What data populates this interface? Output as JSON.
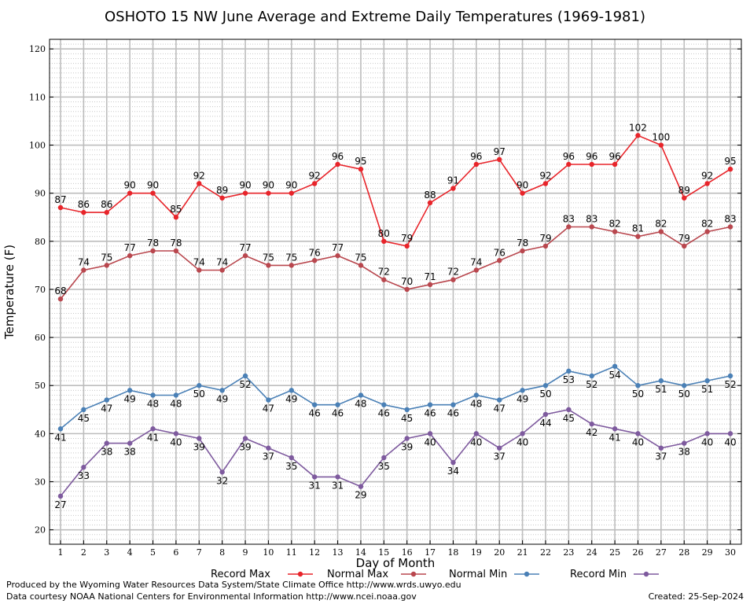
{
  "chart_data": {
    "type": "line",
    "title": "OSHOTO 15 NW June Average and Extreme Daily Temperatures (1969-1981)",
    "xlabel": "Day of Month",
    "ylabel": "Temperature (F)",
    "ylim": [
      17,
      122
    ],
    "yticks": [
      20,
      30,
      40,
      50,
      60,
      70,
      80,
      90,
      100,
      110,
      120
    ],
    "x": [
      1,
      2,
      3,
      4,
      5,
      6,
      7,
      8,
      9,
      10,
      11,
      12,
      13,
      14,
      15,
      16,
      17,
      18,
      19,
      20,
      21,
      22,
      23,
      24,
      25,
      26,
      27,
      28,
      29,
      30
    ],
    "grid": true,
    "legend_position": "bottom",
    "series": [
      {
        "name": "Record Max",
        "color": "#e8242a",
        "label_position": "above",
        "values": [
          87,
          86,
          86,
          90,
          90,
          85,
          92,
          89,
          90,
          90,
          90,
          92,
          96,
          95,
          80,
          79,
          88,
          91,
          96,
          97,
          90,
          92,
          96,
          96,
          96,
          102,
          100,
          89,
          92,
          95
        ]
      },
      {
        "name": "Normal Max",
        "color": "#b9474e",
        "label_position": "above",
        "values": [
          68,
          74,
          75,
          77,
          78,
          78,
          74,
          74,
          77,
          75,
          75,
          76,
          77,
          75,
          72,
          70,
          71,
          72,
          74,
          76,
          78,
          79,
          83,
          83,
          82,
          81,
          82,
          79,
          82,
          83
        ]
      },
      {
        "name": "Normal Min",
        "color": "#4a80b6",
        "label_position": "below",
        "values": [
          41,
          45,
          47,
          49,
          48,
          48,
          50,
          49,
          52,
          47,
          49,
          46,
          46,
          48,
          46,
          45,
          46,
          46,
          48,
          47,
          49,
          50,
          53,
          52,
          54,
          50,
          51,
          50,
          51,
          52
        ]
      },
      {
        "name": "Record Min",
        "color": "#7e5a9e",
        "label_position": "below",
        "values": [
          27,
          33,
          38,
          38,
          41,
          40,
          39,
          32,
          39,
          37,
          35,
          31,
          31,
          29,
          35,
          39,
          40,
          34,
          40,
          37,
          40,
          44,
          45,
          42,
          41,
          40,
          37,
          38,
          40,
          40
        ]
      }
    ]
  },
  "footer": {
    "produced_by": "Produced by the Wyoming Water Resources Data System/State Climate Office http://www.wrds.uwyo.edu",
    "courtesy": "Data courtesy NOAA National Centers for Environmental Information http://www.ncei.noaa.gov",
    "created": "Created:  25-Sep-2024"
  }
}
